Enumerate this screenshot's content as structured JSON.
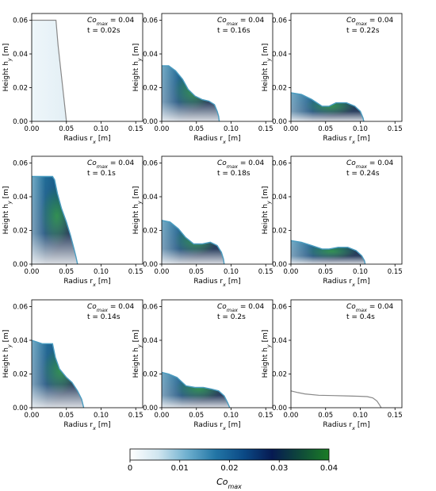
{
  "figure": {
    "panel_ylabel": "Height h",
    "panel_ylabel_sub": "y",
    "panel_ylabel_unit": " [m]",
    "panel_xlabel": "Radius r",
    "panel_xlabel_sub": "x",
    "panel_xlabel_unit": " [m]",
    "annotation_prefix": "Co",
    "annotation_sub": "max",
    "colors": {
      "fill_light": "#f0f8fb",
      "fill_mid": "#1b6a93",
      "fill_dark": "#071f44",
      "fill_accent": "#1d8b3a",
      "outline": "#888888",
      "axis": "#000000"
    }
  },
  "chart_data": [
    {
      "type": "area",
      "annotation_co": "= 0.04",
      "annotation_t": "t = 0.02s",
      "xlim": [
        0,
        0.16
      ],
      "ylim": [
        0,
        0.064
      ],
      "x_ticks": [
        "0.00",
        "0.05",
        "0.10",
        "0.15"
      ],
      "y_ticks": [
        "0.00",
        "0.02",
        "0.04",
        "0.06"
      ],
      "fill": "faint",
      "profile": [
        [
          0,
          0.06
        ],
        [
          0.035,
          0.06
        ],
        [
          0.038,
          0.045
        ],
        [
          0.042,
          0.03
        ],
        [
          0.046,
          0.015
        ],
        [
          0.05,
          0.0
        ]
      ]
    },
    {
      "type": "area",
      "annotation_co": "= 0.04",
      "annotation_t": "t = 0.16s",
      "xlim": [
        0,
        0.16
      ],
      "ylim": [
        0,
        0.064
      ],
      "x_ticks": [
        "0.00",
        "0.05",
        "0.10",
        "0.15"
      ],
      "y_ticks": [
        "0.00",
        "0.02",
        "0.04",
        "0.06"
      ],
      "fill": "gradient",
      "profile": [
        [
          0,
          0.033
        ],
        [
          0.01,
          0.033
        ],
        [
          0.02,
          0.03
        ],
        [
          0.03,
          0.025
        ],
        [
          0.038,
          0.019
        ],
        [
          0.048,
          0.015
        ],
        [
          0.058,
          0.013
        ],
        [
          0.068,
          0.012
        ],
        [
          0.076,
          0.01
        ],
        [
          0.08,
          0.006
        ],
        [
          0.082,
          0.003
        ],
        [
          0.083,
          0.0
        ]
      ]
    },
    {
      "type": "area",
      "annotation_co": "= 0.04",
      "annotation_t": "t = 0.22s",
      "xlim": [
        0,
        0.16
      ],
      "ylim": [
        0,
        0.064
      ],
      "x_ticks": [
        "0.00",
        "0.05",
        "0.10",
        "0.15"
      ],
      "y_ticks": [
        "0.00",
        "0.02",
        "0.04",
        "0.06"
      ],
      "fill": "gradient",
      "profile": [
        [
          0,
          0.017
        ],
        [
          0.015,
          0.016
        ],
        [
          0.03,
          0.013
        ],
        [
          0.045,
          0.009
        ],
        [
          0.055,
          0.009
        ],
        [
          0.065,
          0.011
        ],
        [
          0.08,
          0.011
        ],
        [
          0.092,
          0.009
        ],
        [
          0.1,
          0.006
        ],
        [
          0.104,
          0.002
        ],
        [
          0.105,
          0.0
        ]
      ]
    },
    {
      "type": "area",
      "annotation_co": "= 0.04",
      "annotation_t": "t = 0.1s",
      "xlim": [
        0,
        0.16
      ],
      "ylim": [
        0,
        0.064
      ],
      "x_ticks": [
        "0.00",
        "0.05",
        "0.10",
        "0.15"
      ],
      "y_ticks": [
        "0.00",
        "0.02",
        "0.04",
        "0.06"
      ],
      "fill": "gradient",
      "profile": [
        [
          0,
          0.052
        ],
        [
          0.03,
          0.052
        ],
        [
          0.033,
          0.05
        ],
        [
          0.037,
          0.042
        ],
        [
          0.043,
          0.033
        ],
        [
          0.05,
          0.025
        ],
        [
          0.056,
          0.017
        ],
        [
          0.061,
          0.009
        ],
        [
          0.064,
          0.004
        ],
        [
          0.066,
          0.0
        ]
      ]
    },
    {
      "type": "area",
      "annotation_co": "= 0.04",
      "annotation_t": "t = 0.18s",
      "xlim": [
        0,
        0.16
      ],
      "ylim": [
        0,
        0.064
      ],
      "x_ticks": [
        "0.00",
        "0.05",
        "0.10",
        "0.15"
      ],
      "y_ticks": [
        "0.00",
        "0.02",
        "0.04",
        "0.06"
      ],
      "fill": "gradient",
      "profile": [
        [
          0,
          0.026
        ],
        [
          0.012,
          0.025
        ],
        [
          0.024,
          0.021
        ],
        [
          0.034,
          0.016
        ],
        [
          0.046,
          0.012
        ],
        [
          0.058,
          0.012
        ],
        [
          0.07,
          0.013
        ],
        [
          0.08,
          0.011
        ],
        [
          0.086,
          0.007
        ],
        [
          0.089,
          0.003
        ],
        [
          0.09,
          0.0
        ]
      ]
    },
    {
      "type": "area",
      "annotation_co": "= 0.04",
      "annotation_t": "t = 0.24s",
      "xlim": [
        0,
        0.16
      ],
      "ylim": [
        0,
        0.064
      ],
      "x_ticks": [
        "0.00",
        "0.05",
        "0.10",
        "0.15"
      ],
      "y_ticks": [
        "0.00",
        "0.02",
        "0.04",
        "0.06"
      ],
      "fill": "gradient",
      "profile": [
        [
          0,
          0.014
        ],
        [
          0.015,
          0.013
        ],
        [
          0.03,
          0.011
        ],
        [
          0.045,
          0.009
        ],
        [
          0.055,
          0.009
        ],
        [
          0.068,
          0.01
        ],
        [
          0.082,
          0.01
        ],
        [
          0.094,
          0.008
        ],
        [
          0.102,
          0.005
        ],
        [
          0.106,
          0.002
        ],
        [
          0.107,
          0.0
        ]
      ]
    },
    {
      "type": "area",
      "annotation_co": "= 0.04",
      "annotation_t": "t = 0.14s",
      "xlim": [
        0,
        0.16
      ],
      "ylim": [
        0,
        0.064
      ],
      "x_ticks": [
        "0.00",
        "0.05",
        "0.10",
        "0.15"
      ],
      "y_ticks": [
        "0.00",
        "0.02",
        "0.04",
        "0.06"
      ],
      "fill": "gradient",
      "profile": [
        [
          0,
          0.04
        ],
        [
          0.015,
          0.038
        ],
        [
          0.03,
          0.038
        ],
        [
          0.034,
          0.03
        ],
        [
          0.04,
          0.023
        ],
        [
          0.05,
          0.018
        ],
        [
          0.058,
          0.015
        ],
        [
          0.066,
          0.01
        ],
        [
          0.072,
          0.005
        ],
        [
          0.075,
          0.0
        ]
      ]
    },
    {
      "type": "area",
      "annotation_co": "= 0.04",
      "annotation_t": "t = 0.2s",
      "xlim": [
        0,
        0.16
      ],
      "ylim": [
        0,
        0.064
      ],
      "x_ticks": [
        "0.00",
        "0.05",
        "0.10",
        "0.15"
      ],
      "y_ticks": [
        "0.00",
        "0.02",
        "0.04",
        "0.06"
      ],
      "fill": "gradient",
      "profile": [
        [
          0,
          0.021
        ],
        [
          0.01,
          0.02
        ],
        [
          0.022,
          0.018
        ],
        [
          0.035,
          0.013
        ],
        [
          0.048,
          0.012
        ],
        [
          0.06,
          0.012
        ],
        [
          0.072,
          0.011
        ],
        [
          0.082,
          0.01
        ],
        [
          0.09,
          0.007
        ],
        [
          0.095,
          0.003
        ],
        [
          0.098,
          0.0
        ]
      ]
    },
    {
      "type": "line",
      "annotation_co": "= 0.04",
      "annotation_t": "t = 0.4s",
      "xlim": [
        0,
        0.16
      ],
      "ylim": [
        0,
        0.064
      ],
      "x_ticks": [
        "0.00",
        "0.05",
        "0.10",
        "0.15"
      ],
      "y_ticks": [
        "0.00",
        "0.02",
        "0.04",
        "0.06"
      ],
      "fill": "none",
      "profile": [
        [
          0,
          0.01
        ],
        [
          0.01,
          0.009
        ],
        [
          0.02,
          0.0082
        ],
        [
          0.04,
          0.0074
        ],
        [
          0.06,
          0.0072
        ],
        [
          0.08,
          0.007
        ],
        [
          0.1,
          0.0068
        ],
        [
          0.11,
          0.0066
        ],
        [
          0.118,
          0.0058
        ],
        [
          0.124,
          0.004
        ],
        [
          0.128,
          0.0015
        ],
        [
          0.13,
          0.0
        ]
      ]
    }
  ],
  "colorbar": {
    "label_prefix": "Co",
    "label_sub": "max",
    "range": [
      0,
      0.04
    ],
    "ticks": [
      "0",
      "0.01",
      "0.02",
      "0.03",
      "0.04"
    ],
    "stops": [
      "#ffffff",
      "#cfe5ef",
      "#6fb0cf",
      "#2376a6",
      "#0b4a86",
      "#061a52",
      "#0f4a3a",
      "#1b7d25"
    ]
  }
}
